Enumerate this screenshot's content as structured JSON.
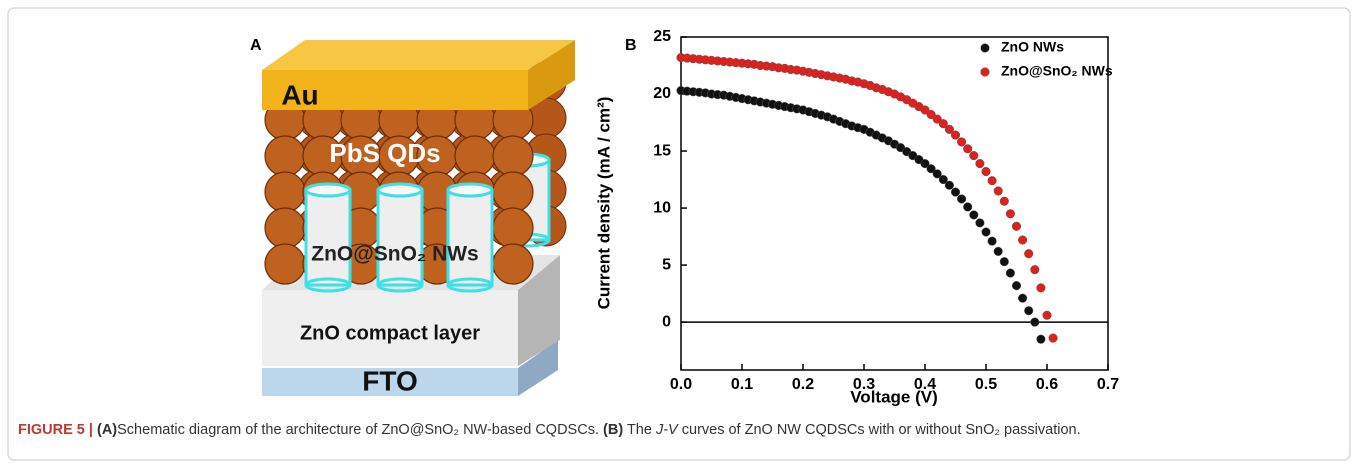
{
  "panel_a": {
    "label": "A",
    "layers": {
      "top": "Au",
      "quantum_dots": "PbS QDs",
      "nanowires": "ZnO@SnO₂ NWs",
      "compact": "ZnO compact layer",
      "substrate": "FTO"
    }
  },
  "chart_data": {
    "type": "scatter",
    "panel_label": "B",
    "x_label": "Voltage (V)",
    "y_label": "Current density (mA / cm²)",
    "xlim": [
      0,
      0.7
    ],
    "ylim": [
      -4.2,
      25
    ],
    "xticks": [
      {
        "value": 0,
        "label": "0.0"
      },
      0.1,
      0.2,
      0.3,
      0.4,
      0.5,
      0.6,
      0.7
    ],
    "yticks": [
      0,
      5,
      10,
      15,
      20,
      25
    ],
    "legend": "top-right",
    "x": [
      0,
      0.01,
      0.02,
      0.03,
      0.04,
      0.05,
      0.06,
      0.07,
      0.08,
      0.09,
      0.1,
      0.11,
      0.12,
      0.13,
      0.14,
      0.15,
      0.16,
      0.17,
      0.18,
      0.19,
      0.2,
      0.21,
      0.22,
      0.23,
      0.24,
      0.25,
      0.26,
      0.27,
      0.28,
      0.29,
      0.3,
      0.31,
      0.32,
      0.33,
      0.34,
      0.35,
      0.36,
      0.37,
      0.38,
      0.39,
      0.4,
      0.41,
      0.42,
      0.43,
      0.44,
      0.45,
      0.46,
      0.47,
      0.48,
      0.49,
      0.5,
      0.51,
      0.52,
      0.53,
      0.54,
      0.55,
      0.56,
      0.57,
      0.58,
      0.59,
      0.6,
      0.61
    ],
    "series": [
      {
        "name": "ZnO NWs",
        "color": "#111111",
        "values": [
          20.3,
          20.25,
          20.2,
          20.15,
          20.1,
          20.0,
          19.95,
          19.9,
          19.8,
          19.7,
          19.6,
          19.5,
          19.4,
          19.3,
          19.2,
          19.1,
          19.0,
          18.9,
          18.8,
          18.7,
          18.6,
          18.45,
          18.3,
          18.15,
          18.0,
          17.8,
          17.6,
          17.4,
          17.2,
          17.05,
          16.9,
          16.65,
          16.4,
          16.15,
          15.9,
          15.6,
          15.3,
          14.95,
          14.6,
          14.25,
          13.9,
          13.45,
          13.0,
          12.5,
          12.0,
          11.4,
          10.8,
          10.1,
          9.4,
          8.7,
          7.9,
          7.1,
          6.2,
          5.3,
          4.3,
          3.2,
          2.1,
          1.0,
          0.0,
          -1.5,
          null,
          null
        ]
      },
      {
        "name": "ZnO@SnO₂ NWs",
        "color": "#e0201c",
        "values": [
          23.2,
          23.15,
          23.1,
          23.05,
          23.0,
          22.95,
          22.9,
          22.85,
          22.8,
          22.75,
          22.7,
          22.65,
          22.6,
          22.5,
          22.45,
          22.4,
          22.3,
          22.25,
          22.15,
          22.1,
          22.0,
          21.9,
          21.8,
          21.7,
          21.6,
          21.5,
          21.4,
          21.3,
          21.15,
          21.05,
          20.9,
          20.75,
          20.55,
          20.4,
          20.2,
          20.0,
          19.75,
          19.5,
          19.2,
          18.9,
          18.6,
          18.2,
          17.8,
          17.4,
          16.9,
          16.4,
          15.8,
          15.2,
          14.6,
          13.9,
          13.2,
          12.4,
          11.5,
          10.6,
          9.5,
          8.4,
          7.2,
          6.0,
          4.6,
          3.0,
          0.6,
          -1.4
        ]
      }
    ]
  },
  "caption": {
    "figure": "FIGURE 5 |",
    "a_label": "(A)",
    "a_text": "Schematic diagram of the architecture of ZnO@SnO₂ NW-based CQDSCs.",
    "b_label": "(B)",
    "b_text_1": "The",
    "b_italic": "J-V",
    "b_text_2": "curves of ZnO NW CQDSCs with or without SnO₂ passivation."
  }
}
